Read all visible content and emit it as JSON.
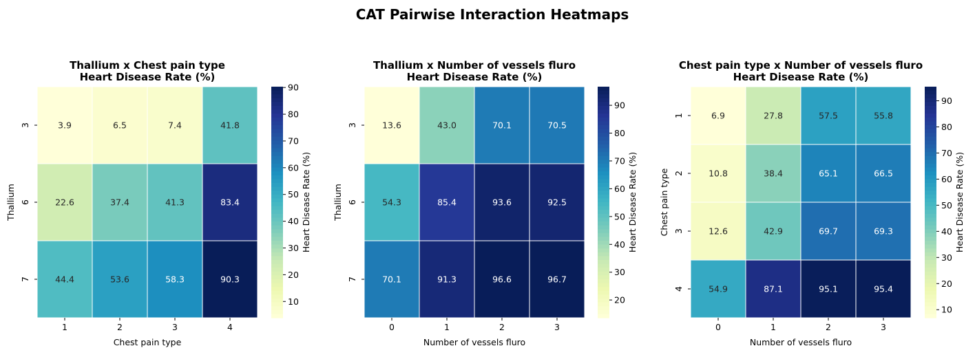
{
  "figure": {
    "suptitle": "CAT Pairwise Interaction Heatmaps"
  },
  "colormap": {
    "name": "YlGnBu",
    "stops": [
      "#ffffd9",
      "#edf8b1",
      "#c7e9b4",
      "#7fcdbb",
      "#41b6c4",
      "#1d91c0",
      "#225ea8",
      "#253494",
      "#081d58"
    ]
  },
  "chart_data": [
    {
      "type": "heatmap",
      "title": "Thallium x Chest pain type\nHeart Disease Rate (%)",
      "xlabel": "Chest pain type",
      "ylabel": "Thallium",
      "x_categories": [
        "1",
        "2",
        "3",
        "4"
      ],
      "y_categories": [
        "3",
        "6",
        "7"
      ],
      "values": [
        [
          3.9,
          6.5,
          7.4,
          41.8
        ],
        [
          22.6,
          37.4,
          41.3,
          83.4
        ],
        [
          44.4,
          53.6,
          58.3,
          90.3
        ]
      ],
      "colorbar": {
        "label": "Heart Disease Rate (%)",
        "range": [
          3.9,
          90.3
        ],
        "ticks": [
          10,
          20,
          30,
          40,
          50,
          60,
          70,
          80,
          90
        ]
      }
    },
    {
      "type": "heatmap",
      "title": "Thallium x Number of vessels fluro\nHeart Disease Rate (%)",
      "xlabel": "Number of vessels fluro",
      "ylabel": "Thallium",
      "x_categories": [
        "0",
        "1",
        "2",
        "3"
      ],
      "y_categories": [
        "3",
        "6",
        "7"
      ],
      "values": [
        [
          13.6,
          43.0,
          70.1,
          70.5
        ],
        [
          54.3,
          85.4,
          93.6,
          92.5
        ],
        [
          70.1,
          91.3,
          96.6,
          96.7
        ]
      ],
      "colorbar": {
        "label": "Heart Disease Rate (%)",
        "range": [
          13.6,
          96.7
        ],
        "ticks": [
          20,
          30,
          40,
          50,
          60,
          70,
          80,
          90
        ]
      }
    },
    {
      "type": "heatmap",
      "title": "Chest pain type x Number of vessels fluro\nHeart Disease Rate (%)",
      "xlabel": "Number of vessels fluro",
      "ylabel": "Chest pain type",
      "x_categories": [
        "0",
        "1",
        "2",
        "3"
      ],
      "y_categories": [
        "1",
        "2",
        "3",
        "4"
      ],
      "values": [
        [
          6.9,
          27.8,
          57.5,
          55.8
        ],
        [
          10.8,
          38.4,
          65.1,
          66.5
        ],
        [
          12.6,
          42.9,
          69.7,
          69.3
        ],
        [
          54.9,
          87.1,
          95.1,
          95.4
        ]
      ],
      "colorbar": {
        "label": "Heart Disease Rate (%)",
        "range": [
          6.9,
          95.4
        ],
        "ticks": [
          10,
          20,
          30,
          40,
          50,
          60,
          70,
          80,
          90
        ]
      }
    }
  ]
}
